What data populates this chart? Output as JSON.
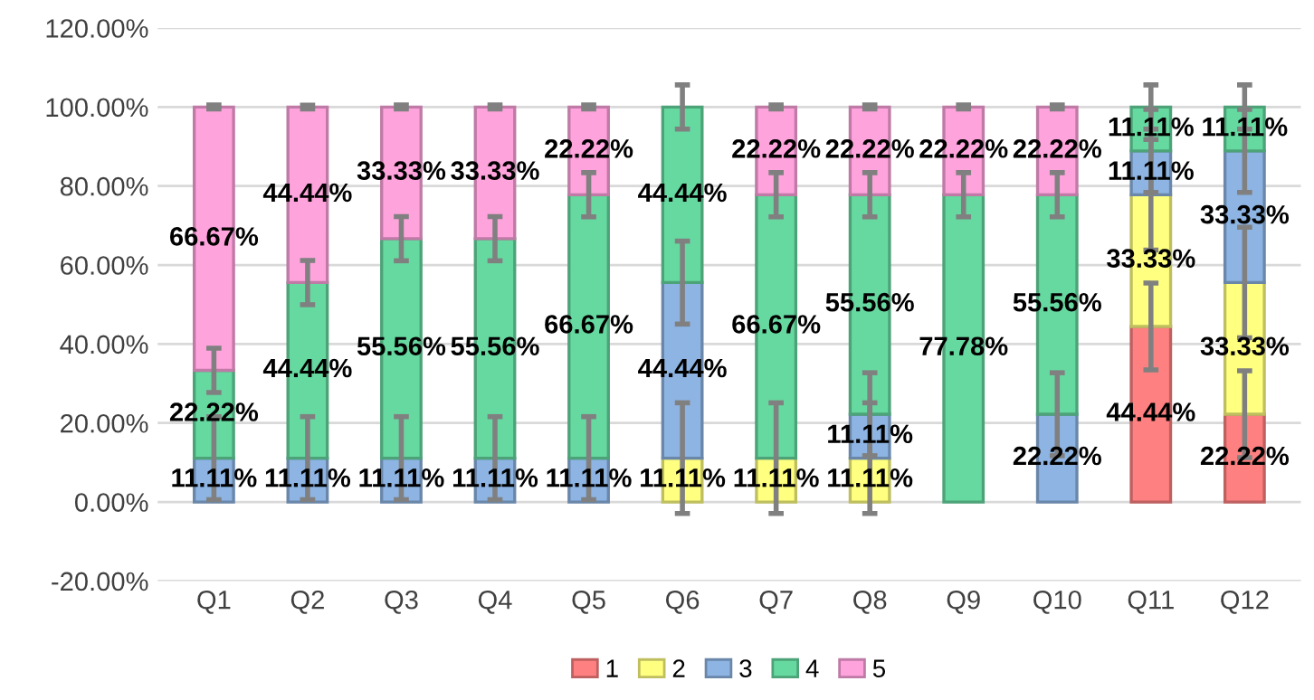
{
  "chart_data": {
    "type": "bar",
    "stacked": true,
    "categories": [
      "Q1",
      "Q2",
      "Q3",
      "Q4",
      "Q5",
      "Q6",
      "Q7",
      "Q8",
      "Q9",
      "Q10",
      "Q11",
      "Q12"
    ],
    "series": [
      {
        "name": "1",
        "color": "#ff8080",
        "values": [
          null,
          null,
          null,
          null,
          null,
          null,
          null,
          null,
          null,
          null,
          44.44,
          22.22
        ],
        "errors": [
          null,
          null,
          null,
          null,
          null,
          null,
          null,
          null,
          null,
          null,
          11,
          11
        ],
        "value_labels": [
          null,
          null,
          null,
          null,
          null,
          null,
          null,
          null,
          null,
          null,
          "44.44%",
          "22.22%"
        ]
      },
      {
        "name": "2",
        "color": "#ffff80",
        "values": [
          null,
          null,
          null,
          null,
          null,
          11.11,
          11.11,
          11.11,
          null,
          null,
          33.33,
          33.33
        ],
        "errors": [
          null,
          null,
          null,
          null,
          null,
          14,
          14,
          14,
          null,
          null,
          14,
          14
        ],
        "value_labels": [
          null,
          null,
          null,
          null,
          null,
          "11.11%",
          "11.11%",
          "11.11%",
          null,
          null,
          "33.33%",
          "33.33%"
        ]
      },
      {
        "name": "3",
        "color": "#8db4e2",
        "values": [
          11.11,
          11.11,
          11.11,
          11.11,
          11.11,
          44.44,
          null,
          11.11,
          null,
          22.22,
          11.11,
          33.33
        ],
        "errors": [
          10.5,
          10.5,
          10.5,
          10.5,
          10.5,
          10.5,
          null,
          10.5,
          null,
          10.5,
          10.5,
          10.5
        ],
        "value_labels": [
          "11.11%",
          "11.11%",
          "11.11%",
          "11.11%",
          "11.11%",
          "44.44%",
          null,
          "11.11%",
          null,
          "22.22%",
          "11.11%",
          "33.33%"
        ]
      },
      {
        "name": "4",
        "color": "#66d9a0",
        "values": [
          22.22,
          44.44,
          55.56,
          55.56,
          66.67,
          44.44,
          66.67,
          55.56,
          77.78,
          55.56,
          11.11,
          11.11
        ],
        "errors": [
          5.6,
          5.6,
          5.6,
          5.6,
          5.6,
          5.6,
          5.6,
          5.6,
          5.6,
          5.6,
          5.6,
          5.6
        ],
        "value_labels": [
          "22.22%",
          "44.44%",
          "55.56%",
          "55.56%",
          "66.67%",
          "44.44%",
          "66.67%",
          "55.56%",
          "77.78%",
          "55.56%",
          "11.11%",
          "11.11%"
        ]
      },
      {
        "name": "5",
        "color": "#ffa3dd",
        "values": [
          66.67,
          44.44,
          33.33,
          33.33,
          22.22,
          null,
          22.22,
          22.22,
          22.22,
          22.22,
          null,
          null
        ],
        "errors": [
          0.5,
          0.5,
          0.5,
          0.5,
          0.5,
          null,
          0.5,
          0.5,
          0.5,
          0.5,
          null,
          null
        ],
        "value_labels": [
          "66.67%",
          "44.44%",
          "33.33%",
          "33.33%",
          "22.22%",
          null,
          "22.22%",
          "22.22%",
          "22.22%",
          "22.22%",
          null,
          null
        ]
      }
    ],
    "ylim": [
      -20,
      120
    ],
    "yticks": [
      {
        "value": -20,
        "label": "-20.00%"
      },
      {
        "value": 0,
        "label": "0.00%"
      },
      {
        "value": 20,
        "label": "20.00%"
      },
      {
        "value": 40,
        "label": "40.00%"
      },
      {
        "value": 60,
        "label": "60.00%"
      },
      {
        "value": 80,
        "label": "80.00%"
      },
      {
        "value": 100,
        "label": "100.00%"
      },
      {
        "value": 120,
        "label": "120.00%"
      }
    ],
    "grid": "y",
    "legend": "bottom"
  }
}
